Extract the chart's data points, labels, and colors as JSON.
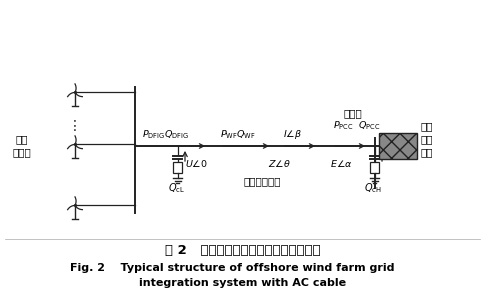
{
  "bg_color": "#ffffff",
  "title_cn": "图 2   海上风电场交流送出系统典型结构",
  "title_en_line1": "Fig. 2    Typical structure of offshore wind farm grid",
  "title_en_line2": "integration system with AC cable",
  "label_haishangjf": "海上\n风电场",
  "label_binwangdian": "并网点",
  "label_lushangjl_1": "陆上",
  "label_lushangjl_2": "交流",
  "label_lushangjl_3": "电网",
  "label_gaoyajldl": "高压交流电网",
  "label_PDFIG": "$P_{\\mathrm{DFIG}}Q_{\\mathrm{DFIG}}$",
  "label_PWF": "$P_{\\mathrm{WF}}Q_{\\mathrm{WF}}$",
  "label_Ibeta": "$I\\angle\\beta$",
  "label_PPCC": "$P_{\\mathrm{PCC}}$",
  "label_QPCC": "$Q_{\\mathrm{PCC}}$",
  "label_U0": "$U\\angle0$",
  "label_Ztheta": "$Z\\angle\\theta$",
  "label_Ealpha": "$E\\angle\\alpha$",
  "label_QcL": "$Q_{\\mathrm{cL}}$",
  "label_QcH": "$Q_{\\mathrm{cH}}$",
  "lc": "#222222",
  "figw": 4.85,
  "figh": 3.01,
  "dpi": 100
}
